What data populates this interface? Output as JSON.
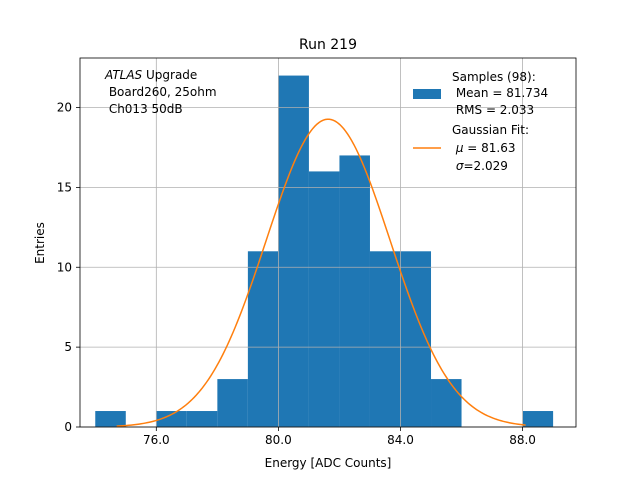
{
  "chart_data": {
    "type": "bar",
    "title": "Run 219",
    "xlabel": "Energy [ADC Counts]",
    "ylabel": "Entries",
    "xlim": [
      73.5,
      89.75
    ],
    "ylim": [
      0,
      23.1
    ],
    "grid": true,
    "x_ticks": [
      76,
      80,
      84,
      88
    ],
    "x_tick_labels": [
      "76.0",
      "80.0",
      "84.0",
      "88.0"
    ],
    "y_ticks": [
      0,
      5,
      10,
      15,
      20
    ],
    "y_tick_labels": [
      "0",
      "5",
      "10",
      "15",
      "20"
    ],
    "bins": [
      {
        "x0": 74,
        "x1": 75,
        "count": 1
      },
      {
        "x0": 75,
        "x1": 76,
        "count": 0
      },
      {
        "x0": 76,
        "x1": 77,
        "count": 1
      },
      {
        "x0": 77,
        "x1": 78,
        "count": 1
      },
      {
        "x0": 78,
        "x1": 79,
        "count": 3
      },
      {
        "x0": 79,
        "x1": 80,
        "count": 11
      },
      {
        "x0": 80,
        "x1": 81,
        "count": 22
      },
      {
        "x0": 81,
        "x1": 82,
        "count": 16
      },
      {
        "x0": 82,
        "x1": 83,
        "count": 17
      },
      {
        "x0": 83,
        "x1": 84,
        "count": 11
      },
      {
        "x0": 84,
        "x1": 85,
        "count": 11
      },
      {
        "x0": 85,
        "x1": 86,
        "count": 3
      },
      {
        "x0": 86,
        "x1": 87,
        "count": 0
      },
      {
        "x0": 87,
        "x1": 88,
        "count": 0
      },
      {
        "x0": 88,
        "x1": 89,
        "count": 1
      }
    ],
    "fit": {
      "type": "gaussian",
      "mu": 81.63,
      "sigma": 2.029,
      "entries": 98,
      "bin_width": 1,
      "x_range": [
        74.7,
        88.1
      ],
      "color": "#ff7f0e"
    },
    "bar_color": "#1f77b4",
    "annotation": {
      "italic_part": "ATLAS",
      "line1_rest": " Upgrade",
      "line2": " Board260, 25ohm",
      "line3": " Ch013 50dB"
    },
    "legend": {
      "position": "top-right",
      "samples_line1": "Samples (98):",
      "samples_line2": " Mean = 81.734",
      "samples_line3": " RMS = 2.033",
      "fit_line1": "Gaussian Fit:",
      "fit_line2_sym": "μ",
      "fit_line2_rest": " = 81.63",
      "fit_line3_sym": "σ",
      "fit_line3_rest": "=2.029"
    }
  }
}
